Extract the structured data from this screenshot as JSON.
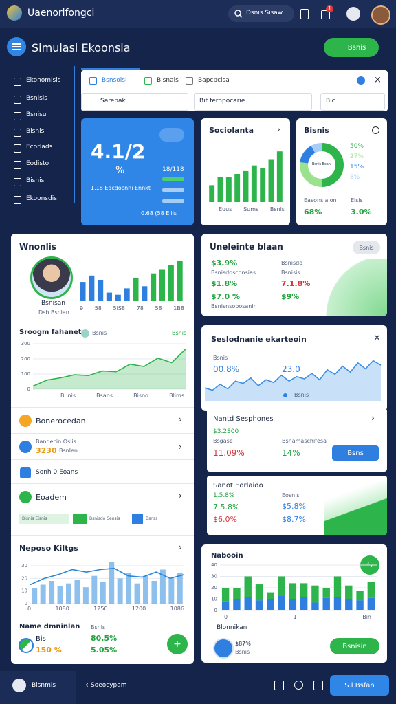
{
  "header": {
    "app_title": "Uaenorlfongci",
    "search": "Dsnis Sisaw",
    "badge": "1"
  },
  "toolbar": {
    "title": "Simulasi Ekoonsia",
    "button": "Bsnis"
  },
  "sidebar": [
    "Ekonomisis",
    "Bsnisis",
    "Bsnisu",
    "Bisnis",
    "Ecorlads",
    "Eodisto",
    "Bisnis",
    "Ekoonsdis"
  ],
  "tabs": [
    "Bsnsoisi",
    "Bisnais",
    "Bapcpcisa"
  ],
  "filters": [
    "Sarepak",
    "Bit fernpocarie",
    "Bic"
  ],
  "blue_card": {
    "value": "4.1/2",
    "unit": "%",
    "caption": "1.18 Eacdocnni Ennkt",
    "side": "18/118",
    "footer": "0.68 (58 Eliis"
  },
  "sociolanta": {
    "title": "Sociolanta",
    "x_labels": [
      "Euus",
      "Sums",
      "Bsnis"
    ],
    "chart": {
      "type": "bar",
      "ylim": [
        0,
        20
      ],
      "color": "#2db44a",
      "values": [
        6,
        9,
        9,
        10,
        11,
        13,
        12,
        15,
        18
      ]
    }
  },
  "bisnis": {
    "title": "Bisnis",
    "center": "Bsnis Ecan",
    "chart": {
      "type": "donut",
      "colors": [
        "#2db44a",
        "#9be28f",
        "#2f7fe0",
        "#a8cdf5"
      ],
      "values": [
        50,
        27,
        15,
        8
      ],
      "value_labels": [
        "50%",
        "27%",
        "15%",
        "8%"
      ]
    },
    "footer": [
      "Easonsialon",
      "Elsis"
    ],
    "stats": [
      "68%",
      "3.0%"
    ]
  },
  "profile": {
    "title": "Wnonlis",
    "name": "Bsnisan",
    "subtitle": "Dsb Bsnlan",
    "x_labels": [
      "9",
      "58",
      "5iS8",
      "78",
      "58",
      "1B8"
    ],
    "chart": {
      "type": "bar",
      "ylim": [
        0,
        20
      ],
      "colors": [
        "#2f7fe0",
        "#2f7fe0",
        "#2f7fe0",
        "#2f7fe0",
        "#2f7fe0",
        "#2f7fe0",
        "#2db44a",
        "#2f7fe0",
        "#2db44a",
        "#2db44a",
        "#2db44a",
        "#2db44a"
      ],
      "values": [
        9,
        12,
        10,
        4,
        3,
        6,
        11,
        7,
        13,
        15,
        17,
        19
      ]
    }
  },
  "trend": {
    "title": "Sroogm fahanet",
    "legend": "Bsnis",
    "tag": "Bsnis",
    "x_labels": [
      "Bunis",
      "Bsans",
      "Bisno",
      "Blims"
    ],
    "chart": {
      "type": "area",
      "ylim": [
        0,
        300
      ],
      "yticks": [
        0,
        100,
        200,
        300
      ],
      "color": "#2db44a",
      "values": [
        20,
        60,
        75,
        95,
        90,
        120,
        115,
        165,
        150,
        205,
        175,
        265
      ]
    }
  },
  "list": [
    {
      "title": "Bonerocedan"
    },
    {
      "title": "Bandecin Oslis",
      "value": "3230",
      "note": "Bsnlen"
    },
    {
      "title": "Sonh 0 Eoans"
    },
    {
      "title": "Eoadem"
    }
  ],
  "legend": [
    "Bisnis Eisnis",
    "Bsnisdo Sensis",
    "Bsnss"
  ],
  "kiltgs": {
    "title": "Neposo Kiltgs",
    "x_labels": [
      "0",
      "1080",
      "1250",
      "1200",
      "1086"
    ],
    "chart": {
      "type": "combo",
      "ylim": [
        0,
        36
      ],
      "yticks": [
        0,
        10,
        20,
        30
      ],
      "series": [
        {
          "color": "#8ec0ee",
          "values": [
            12,
            15,
            18,
            14,
            16,
            19,
            13,
            22,
            17,
            33,
            20,
            24,
            16,
            22,
            18,
            27,
            20,
            24
          ]
        },
        {
          "color": "#2b85d8",
          "values": [
            15,
            20,
            23,
            27,
            25,
            27,
            28,
            22,
            21,
            25,
            20,
            23
          ]
        }
      ]
    }
  },
  "summary": {
    "title": "Name dmninlan",
    "label": "Bsnls",
    "item": "Bis",
    "item_value": "150 %",
    "values": [
      "80.5%",
      "5.05%"
    ]
  },
  "unelein": {
    "title": "Uneleinte blaan",
    "button": "Bsnis",
    "cells": [
      "$3.9%",
      "Bsnisdo",
      "Bsnisdosconsias",
      "Bsnisis",
      "$1.8%",
      "7.1.8%",
      "$7.0 %",
      "$9%",
      "Bsnisnsobosanin"
    ]
  },
  "ekarteoin": {
    "title": "Seslodnanie ekarteoin",
    "label": "Bsnis",
    "values": [
      "00.8%",
      "23.0"
    ],
    "legend": "Bsnis",
    "chart": {
      "type": "area",
      "ylim": [
        0,
        100
      ],
      "color": "#3a8fe6",
      "values": [
        30,
        25,
        38,
        28,
        45,
        40,
        52,
        35,
        48,
        42,
        58,
        45,
        55,
        50,
        62,
        48,
        70,
        60,
        78,
        65,
        85,
        72,
        90,
        80
      ]
    }
  },
  "nantd": {
    "title": "Nantd Sesphones",
    "cells": [
      "$3.2S00",
      "Bsgase",
      "Bsnamaschifesa",
      "11.09%",
      "14%"
    ],
    "button": "Bsns"
  },
  "sanot": {
    "title": "Sanot Eorlaido",
    "cells": [
      "1.5.8%",
      "Eosnis",
      "7.5.8%",
      "$5.8%",
      "$6.0%",
      "$8.7%"
    ]
  },
  "nabooin": {
    "title": "Nabooin",
    "x_labels": [
      "0",
      "1",
      "Bin"
    ],
    "name": "Blonnikan",
    "value": "$87%",
    "note": "Bsnis",
    "button": "Bsnisin",
    "chart": {
      "type": "stacked",
      "ylim": [
        0,
        40
      ],
      "yticks": [
        0,
        10,
        20,
        30,
        40
      ],
      "series": [
        {
          "color": "#2f7fe0",
          "values": [
            8,
            10,
            12,
            9,
            10,
            13,
            10,
            12,
            7,
            11,
            12,
            10,
            9,
            11
          ]
        },
        {
          "color": "#2db44a",
          "values": [
            12,
            10,
            18,
            14,
            6,
            17,
            14,
            12,
            15,
            9,
            18,
            12,
            8,
            14
          ]
        }
      ]
    }
  },
  "footer": {
    "user": "Bisnmis",
    "nav": "Soeocypam",
    "button": "S.l Bsfan"
  }
}
